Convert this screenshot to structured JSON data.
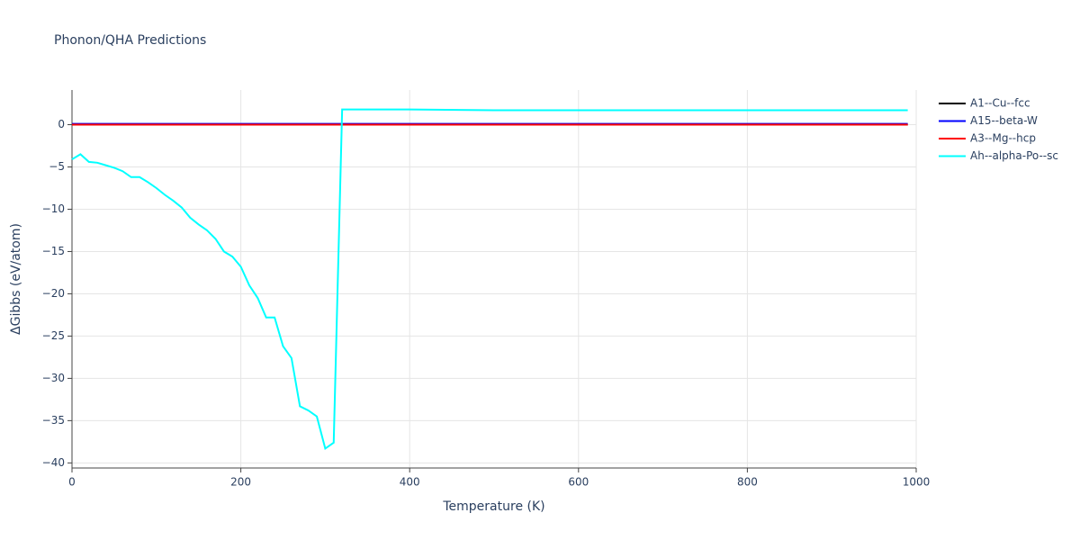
{
  "chart_data": {
    "type": "line",
    "title": "Phonon/QHA Predictions",
    "xlabel": "Temperature (K)",
    "ylabel": "ΔGibbs (eV/atom)",
    "x": [
      0,
      10,
      20,
      30,
      40,
      50,
      60,
      70,
      80,
      90,
      100,
      110,
      120,
      130,
      140,
      150,
      160,
      170,
      180,
      190,
      200,
      210,
      220,
      230,
      240,
      250,
      260,
      270,
      280,
      290,
      300,
      310,
      320,
      400,
      500,
      600,
      700,
      800,
      900,
      990
    ],
    "series": [
      {
        "name": "A1--Cu--fcc",
        "color": "#000000",
        "values": [
          0,
          0,
          0,
          0,
          0,
          0,
          0,
          0,
          0,
          0,
          0,
          0,
          0,
          0,
          0,
          0,
          0,
          0,
          0,
          0,
          0,
          0,
          0,
          0,
          0,
          0,
          0,
          0,
          0,
          0,
          0,
          0,
          0,
          0,
          0,
          0,
          0,
          0,
          0,
          0
        ]
      },
      {
        "name": "A15--beta-W",
        "color": "#0000ff",
        "values": [
          0.1,
          0.1,
          0.1,
          0.1,
          0.1,
          0.1,
          0.1,
          0.1,
          0.1,
          0.1,
          0.1,
          0.1,
          0.1,
          0.1,
          0.1,
          0.1,
          0.1,
          0.1,
          0.1,
          0.1,
          0.1,
          0.1,
          0.1,
          0.1,
          0.1,
          0.1,
          0.1,
          0.1,
          0.1,
          0.1,
          0.1,
          0.1,
          0.1,
          0.1,
          0.1,
          0.1,
          0.1,
          0.1,
          0.1,
          0.1
        ]
      },
      {
        "name": "A3--Mg--hcp",
        "color": "#ff0000",
        "values": [
          0,
          0,
          0,
          0,
          0,
          0,
          0,
          0,
          0,
          0,
          0,
          0,
          0,
          0,
          0,
          0,
          0,
          0,
          0,
          0,
          0,
          0,
          0,
          0,
          0,
          0,
          0,
          0,
          0,
          0,
          0,
          0,
          0,
          0,
          0,
          0,
          0,
          0,
          0,
          0
        ]
      },
      {
        "name": "Ah--alpha-Po--sc",
        "color": "#00ffff",
        "values": [
          -4.1,
          -3.5,
          -4.4,
          -4.5,
          -4.8,
          -5.1,
          -5.5,
          -6.2,
          -6.2,
          -6.8,
          -7.5,
          -8.3,
          -9.0,
          -9.8,
          -11.0,
          -11.8,
          -12.5,
          -13.5,
          -15.0,
          -15.6,
          -16.8,
          -19.0,
          -20.5,
          -22.8,
          -22.8,
          -26.2,
          -27.6,
          -33.3,
          -33.8,
          -34.5,
          -38.3,
          -37.6,
          1.8,
          1.8,
          1.7,
          1.7,
          1.7,
          1.7,
          1.7,
          1.7
        ]
      }
    ],
    "xlim": [
      0,
      1000
    ],
    "xticks": [
      0,
      200,
      400,
      600,
      800,
      1000
    ],
    "ylim": [
      -40.6,
      4.1
    ],
    "yticks": [
      {
        "value": -40,
        "label": "−40"
      },
      {
        "value": -35,
        "label": "−35"
      },
      {
        "value": -30,
        "label": "−30"
      },
      {
        "value": -25,
        "label": "−25"
      },
      {
        "value": -20,
        "label": "−20"
      },
      {
        "value": -15,
        "label": "−15"
      },
      {
        "value": -10,
        "label": "−10"
      },
      {
        "value": -5,
        "label": "−5"
      },
      0
    ],
    "grid": true,
    "legend": "right"
  }
}
